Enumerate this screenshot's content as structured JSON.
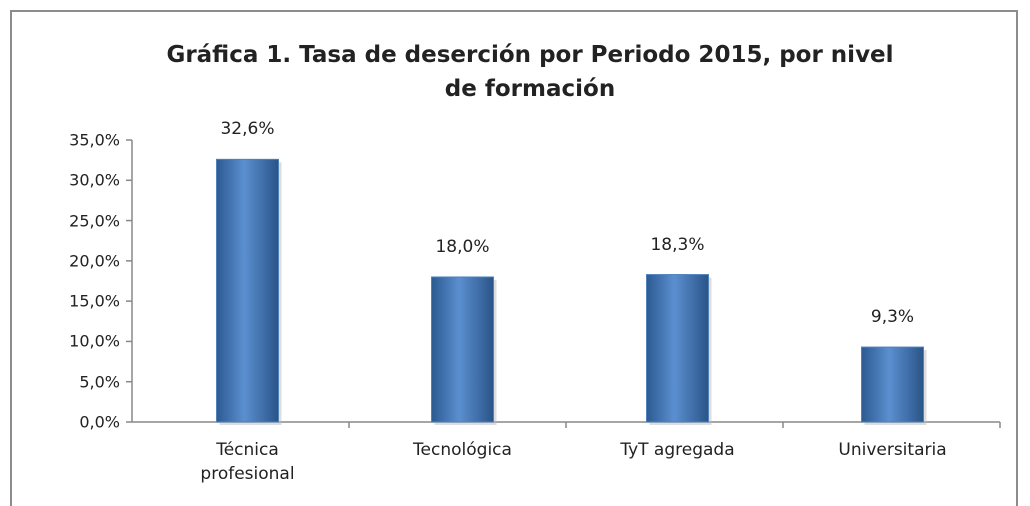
{
  "chart_data": {
    "type": "bar",
    "title": "Gráfica 1. Tasa de deserción por Periodo 2015, por nivel de formación",
    "categories": [
      "Técnica profesional",
      "Tecnológica",
      "TyT agregada",
      "Universitaria"
    ],
    "values": [
      32.6,
      18.0,
      18.3,
      9.3
    ],
    "value_labels": [
      "32,6%",
      "18,0%",
      "18,3%",
      "9,3%"
    ],
    "color": "#4f81bd",
    "ylim": [
      0,
      35
    ],
    "yticks": [
      {
        "value": 0,
        "label": "0,0%"
      },
      {
        "value": 5,
        "label": "5,0%"
      },
      {
        "value": 10,
        "label": "10,0%"
      },
      {
        "value": 15,
        "label": "15,0%"
      },
      {
        "value": 20,
        "label": "20,0%"
      },
      {
        "value": 25,
        "label": "25,0%"
      },
      {
        "value": 30,
        "label": "30,0%"
      },
      {
        "value": 35,
        "label": "35,0%"
      }
    ],
    "grid": false
  }
}
